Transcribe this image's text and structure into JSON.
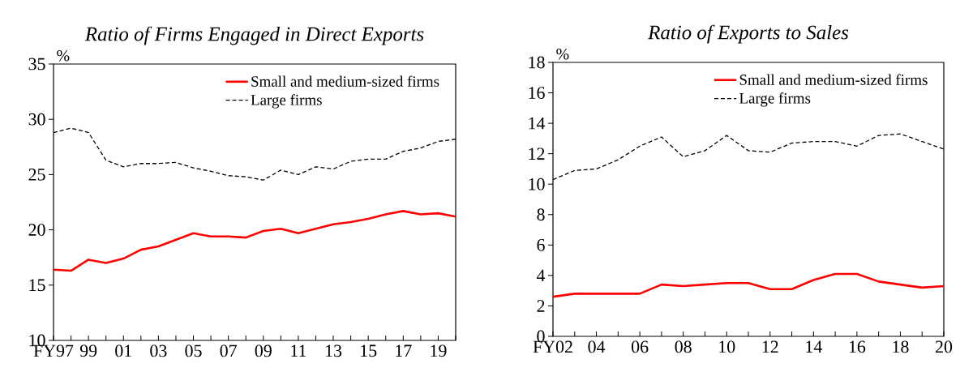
{
  "chart_data": [
    {
      "type": "line",
      "title": "Ratio of Firms Engaged in Direct Exports",
      "ylabel": "%",
      "categories": [
        "FY97",
        null,
        "99",
        null,
        "01",
        null,
        "03",
        null,
        "05",
        null,
        "07",
        null,
        "09",
        null,
        "11",
        null,
        "13",
        null,
        "15",
        null,
        "17",
        null,
        "19",
        null
      ],
      "series": [
        {
          "name": "Small and medium-sized firms",
          "color": "#ff0000",
          "line_style": "solid",
          "values": [
            16.4,
            16.3,
            17.3,
            17.0,
            17.4,
            18.2,
            18.5,
            19.1,
            19.7,
            19.4,
            19.4,
            19.3,
            19.9,
            20.1,
            19.7,
            20.1,
            20.5,
            20.7,
            21.0,
            21.4,
            21.7,
            21.4,
            21.5,
            21.2
          ]
        },
        {
          "name": "Large firms",
          "color": "#000000",
          "line_style": "dashed",
          "values": [
            28.8,
            29.2,
            28.8,
            26.3,
            25.7,
            26.0,
            26.0,
            26.1,
            25.6,
            25.3,
            24.9,
            24.8,
            24.5,
            25.4,
            25.0,
            25.7,
            25.5,
            26.2,
            26.4,
            26.4,
            27.1,
            27.4,
            28.0,
            28.2
          ]
        }
      ],
      "ylim": [
        10,
        35
      ],
      "yticks": [
        10,
        15,
        20,
        25,
        30,
        35
      ],
      "grid": false,
      "legend": "top right",
      "marker": "none"
    },
    {
      "type": "line",
      "title": "Ratio of Exports to Sales",
      "ylabel": "%",
      "categories": [
        "FY02",
        null,
        "04",
        null,
        "06",
        null,
        "08",
        null,
        "10",
        null,
        "12",
        null,
        "14",
        null,
        "16",
        null,
        "18",
        null,
        "20"
      ],
      "series": [
        {
          "name": "Small and medium-sized firms",
          "color": "#ff0000",
          "line_style": "solid",
          "values": [
            2.6,
            2.8,
            2.8,
            2.8,
            2.8,
            3.4,
            3.3,
            3.4,
            3.5,
            3.5,
            3.1,
            3.1,
            3.7,
            4.1,
            4.1,
            3.6,
            3.4,
            3.2,
            3.3
          ]
        },
        {
          "name": "Large firms",
          "color": "#000000",
          "line_style": "dashed",
          "values": [
            10.3,
            10.9,
            11.0,
            11.6,
            12.5,
            13.1,
            11.8,
            12.2,
            13.2,
            12.2,
            12.1,
            12.7,
            12.8,
            12.8,
            12.5,
            13.2,
            13.3,
            12.8,
            12.3
          ]
        }
      ],
      "ylim": [
        0,
        18
      ],
      "yticks": [
        0,
        2,
        4,
        6,
        8,
        10,
        12,
        14,
        16,
        18
      ],
      "grid": false,
      "legend": "top right",
      "marker": "none"
    }
  ]
}
